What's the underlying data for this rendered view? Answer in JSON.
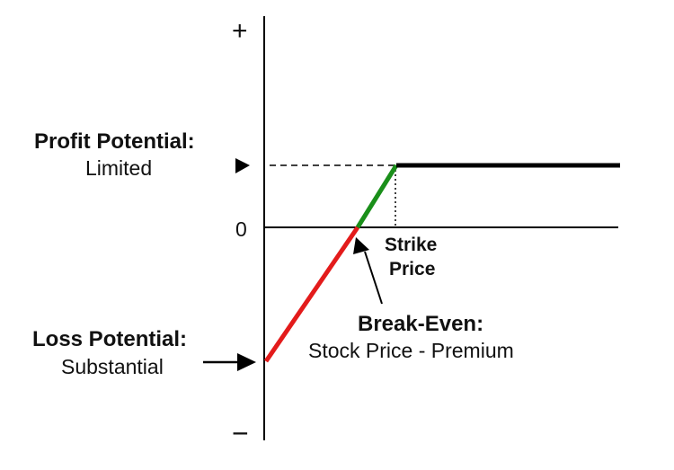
{
  "axis": {
    "plus_label": "+",
    "minus_label": "−",
    "zero_label": "0"
  },
  "profit": {
    "heading": "Profit Potential:",
    "value": "Limited"
  },
  "loss": {
    "heading": "Loss Potential:",
    "value": "Substantial"
  },
  "strike": {
    "line1": "Strike",
    "line2": "Price"
  },
  "break_even": {
    "heading": "Break-Even:",
    "value": "Stock Price - Premium"
  },
  "colors": {
    "loss_segment": "#e31b1b",
    "profit_segment": "#1a8f1a",
    "capped_line": "#000000",
    "axis": "#000000"
  }
}
